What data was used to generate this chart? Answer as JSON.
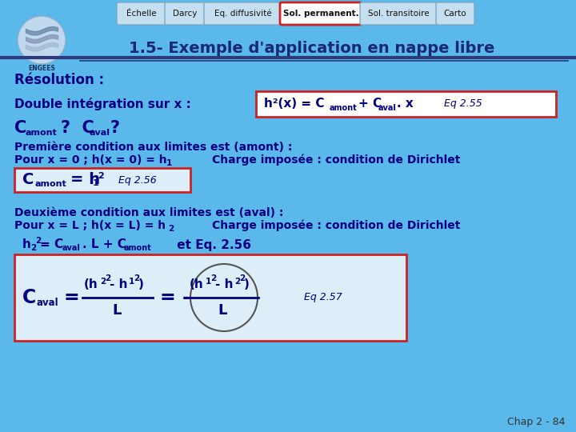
{
  "bg_top": "#5ab4e8",
  "bg_bottom": "#a8d4f0",
  "nav_buttons": [
    "Échelle",
    "Darcy",
    "Eq. diffusivité",
    "Sol. permanent.",
    "Sol. transitoire",
    "Carto"
  ],
  "active_button": "Sol. permanent.",
  "slide_title": "1.5- Exemple d'application en nappe libre",
  "footer_text": "Chap 2 - 84",
  "text_color": "#000080",
  "red_color": "#cc2222"
}
